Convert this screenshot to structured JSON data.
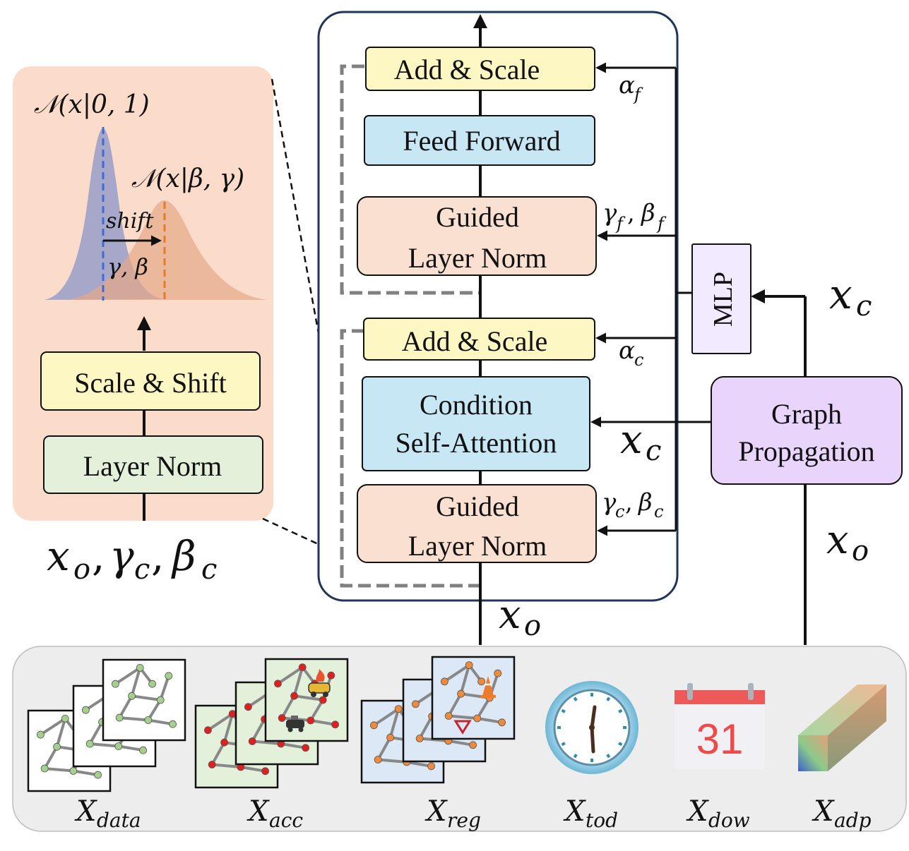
{
  "colors": {
    "yellow": "#FDF7C3",
    "blue": "#C8E7F5",
    "peach": "#FAE0D1",
    "green": "#E3F0DA",
    "purple": "#E9D5FB",
    "lavender": "#F2EAFF",
    "panel_bg": "#FBDCCB",
    "bottom_bg": "#EDEDED",
    "frame": "#1F3559",
    "dashed": "#808080"
  },
  "left_panel": {
    "std_normal": "𝒩(x|0, 1)",
    "shifted_normal": "𝒩(x|β, γ)",
    "shift_label": "shift",
    "gamma_beta": "γ, β",
    "scale_shift": "Scale  &  Shift",
    "layer_norm": "Layer Norm",
    "input_label": "x",
    "input_sub": "o",
    "gamma_c": "γ",
    "gamma_c_sub": "c",
    "beta_c": "β",
    "beta_c_sub": "c"
  },
  "block": {
    "add_scale_top": "Add  &  Scale",
    "feed_forward": "Feed Forward",
    "guided_ln_top_line1": "Guided",
    "guided_ln_top_line2": "Layer Norm",
    "add_scale_mid": "Add  &  Scale",
    "cond_attn_line1": "Condition",
    "cond_attn_line2": "Self-Attention",
    "guided_ln_bot_line1": "Guided",
    "guided_ln_bot_line2": "Layer Norm"
  },
  "side_labels": {
    "alpha": "α",
    "alpha_f_sub": "f",
    "alpha_c_sub": "c",
    "gamma": "γ",
    "beta": "β",
    "f_sub": "f",
    "c_sub": "c",
    "x": "x",
    "c": "c",
    "o": "o"
  },
  "right": {
    "mlp": "MLP",
    "graph_line1": "Graph",
    "graph_line2": "Propagation"
  },
  "inputs": [
    {
      "base": "X",
      "sub": "data"
    },
    {
      "base": "X",
      "sub": "acc"
    },
    {
      "base": "X",
      "sub": "reg"
    },
    {
      "base": "X",
      "sub": "tod"
    },
    {
      "base": "X",
      "sub": "dow"
    },
    {
      "base": "X",
      "sub": "adp"
    }
  ],
  "calendar_day": "31"
}
